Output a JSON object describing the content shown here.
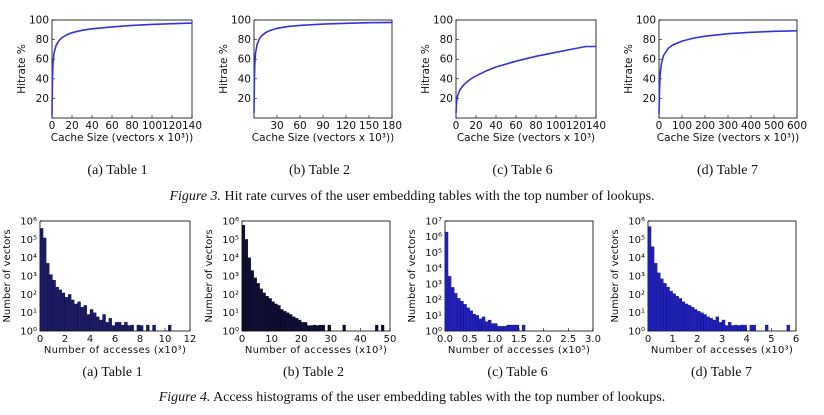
{
  "figure3": {
    "label": "Figure 3.",
    "text": "Hit rate curves of the user embedding tables with the top number of lookups.",
    "panels": [
      {
        "caption": "(a) Table 1"
      },
      {
        "caption": "(b) Table 2"
      },
      {
        "caption": "(c) Table 6"
      },
      {
        "caption": "(d) Table 7"
      }
    ]
  },
  "figure4": {
    "label": "Figure 4.",
    "text": "Access histograms of the user embedding tables with the top number of lookups.",
    "panels": [
      {
        "caption": "(a) Table 1"
      },
      {
        "caption": "(b) Table 2"
      },
      {
        "caption": "(c) Table 6"
      },
      {
        "caption": "(d) Table 7"
      }
    ]
  },
  "chart_data": [
    {
      "type": "line",
      "title": "",
      "xlabel": "Cache Size (vectors x 10³))",
      "ylabel": "Hitrate %",
      "xlim": [
        0,
        140
      ],
      "ylim": [
        0,
        100
      ],
      "xticks": [
        0,
        20,
        40,
        60,
        80,
        100,
        120,
        140
      ],
      "yticks": [
        20,
        40,
        60,
        80,
        100
      ],
      "line_color": "#3333dd",
      "x": [
        0,
        0.5,
        1,
        2,
        4,
        7,
        10,
        15,
        20,
        30,
        40,
        60,
        80,
        100,
        120,
        140
      ],
      "y": [
        3,
        42,
        56,
        66,
        74,
        79,
        82,
        85,
        87,
        89.5,
        91,
        93,
        94.5,
        95.5,
        96.2,
        96.8
      ]
    },
    {
      "type": "line",
      "title": "",
      "xlabel": "Cache Size (vectors x 10³))",
      "ylabel": "Hitrate %",
      "xlim": [
        0,
        180
      ],
      "ylim": [
        0,
        100
      ],
      "xticks": [
        30,
        60,
        90,
        120,
        150,
        180
      ],
      "yticks": [
        20,
        40,
        60,
        80,
        100
      ],
      "line_color": "#3333dd",
      "x": [
        0,
        0.5,
        1,
        2,
        4,
        7,
        10,
        15,
        20,
        30,
        45,
        60,
        90,
        120,
        150,
        180
      ],
      "y": [
        5,
        40,
        55,
        66,
        75,
        81,
        84,
        87,
        89,
        91.5,
        93.5,
        94.5,
        95.8,
        96.6,
        97.2,
        97.6
      ]
    },
    {
      "type": "line",
      "title": "",
      "xlabel": "Cache Size (vectors x 10³)",
      "ylabel": "Hitrate %",
      "xlim": [
        0,
        140
      ],
      "ylim": [
        0,
        100
      ],
      "xticks": [
        0,
        20,
        40,
        60,
        80,
        100,
        120,
        140
      ],
      "yticks": [
        20,
        40,
        60,
        80,
        100
      ],
      "line_color": "#3333dd",
      "x": [
        0,
        0.5,
        1,
        2,
        4,
        7,
        10,
        15,
        20,
        30,
        40,
        60,
        80,
        100,
        120,
        130,
        140
      ],
      "y": [
        5,
        15,
        20,
        24,
        29,
        33,
        36,
        40,
        43,
        48,
        52,
        58,
        63,
        67,
        71,
        73,
        73
      ]
    },
    {
      "type": "line",
      "title": "",
      "xlabel": "Cache Size (vectors x 10³))",
      "ylabel": "Hitrate %",
      "xlim": [
        0,
        600
      ],
      "ylim": [
        0,
        100
      ],
      "xticks": [
        0,
        100,
        200,
        300,
        400,
        500,
        600
      ],
      "yticks": [
        20,
        40,
        60,
        80,
        100
      ],
      "line_color": "#3333dd",
      "x": [
        0,
        2,
        5,
        10,
        20,
        40,
        60,
        100,
        150,
        200,
        300,
        400,
        500,
        600
      ],
      "y": [
        4,
        28,
        44,
        55,
        64,
        71,
        74.5,
        78.5,
        81.5,
        83.5,
        86,
        87.5,
        88.5,
        89
      ]
    },
    {
      "type": "bar",
      "title": "",
      "xlabel": "Number of accesses (x10³)",
      "ylabel": "Number of vectors",
      "yscale": "log",
      "ylim_exp": [
        0,
        6
      ],
      "xlim": [
        0,
        12
      ],
      "xticks": [
        0,
        2,
        4,
        6,
        8,
        10,
        12
      ],
      "ytick_labels": [
        "10⁰",
        "10¹",
        "10²",
        "10³",
        "10⁴",
        "10⁵",
        "10⁶"
      ],
      "bar_color": "#1a1a66",
      "bin_width": 0.25,
      "counts": [
        400000,
        120000,
        5000,
        1200,
        600,
        250,
        180,
        120,
        70,
        100,
        50,
        30,
        40,
        20,
        25,
        8,
        15,
        10,
        6,
        4,
        8,
        3,
        5,
        2,
        3,
        3,
        1,
        3,
        2,
        1,
        0,
        1,
        2,
        0,
        1,
        0,
        1,
        0,
        0,
        0,
        0,
        1,
        0,
        0,
        0,
        0,
        0,
        0
      ]
    },
    {
      "type": "bar",
      "title": "",
      "xlabel": "Number of accesses (x10³)",
      "ylabel": "Number of vectors",
      "yscale": "log",
      "ylim_exp": [
        0,
        6
      ],
      "xlim": [
        0,
        50
      ],
      "xticks": [
        0,
        10,
        20,
        30,
        40,
        50
      ],
      "ytick_labels": [
        "10⁰",
        "10¹",
        "10²",
        "10³",
        "10⁴",
        "10⁵",
        "10⁶"
      ],
      "bar_color": "#0d0d33",
      "bin_width": 1,
      "counts": [
        600000,
        100000,
        10000,
        2000,
        800,
        400,
        200,
        120,
        80,
        60,
        40,
        30,
        25,
        15,
        12,
        10,
        8,
        6,
        5,
        4,
        3,
        3,
        2,
        2,
        1,
        2,
        1,
        1,
        0,
        1,
        0,
        0,
        0,
        0,
        1,
        0,
        0,
        0,
        0,
        0,
        0,
        0,
        0,
        0,
        0,
        1,
        0,
        1,
        0,
        0
      ]
    },
    {
      "type": "bar",
      "title": "",
      "xlabel": "Number of accesses (x10⁵)",
      "ylabel": "Number of vectors",
      "yscale": "log",
      "ylim_exp": [
        0,
        7
      ],
      "xlim": [
        0,
        3
      ],
      "xticks": [
        0.0,
        0.5,
        1.0,
        1.5,
        2.0,
        2.5,
        3.0
      ],
      "ytick_labels": [
        "10⁰",
        "10¹",
        "10²",
        "10³",
        "10⁴",
        "10⁵",
        "10⁶",
        "10⁷"
      ],
      "bar_color": "#1f1fbf",
      "bin_width": 0.0625,
      "counts": [
        2000000,
        3000,
        600,
        250,
        120,
        80,
        50,
        30,
        20,
        12,
        10,
        6,
        8,
        4,
        5,
        3,
        3,
        2,
        2,
        2,
        1,
        1,
        1,
        1,
        0,
        1,
        0,
        0,
        0,
        0,
        0,
        0,
        0,
        0,
        0,
        0,
        0,
        0,
        0,
        0,
        0,
        0,
        0,
        0,
        0,
        0,
        0,
        0
      ]
    },
    {
      "type": "bar",
      "title": "",
      "xlabel": "Number of accesses (x10³)",
      "ylabel": "Number of vectors",
      "yscale": "log",
      "ylim_exp": [
        0,
        6
      ],
      "xlim": [
        0,
        6
      ],
      "xticks": [
        0,
        1,
        2,
        3,
        4,
        5,
        6
      ],
      "ytick_labels": [
        "10⁰",
        "10¹",
        "10²",
        "10³",
        "10⁴",
        "10⁵",
        "10⁶"
      ],
      "bar_color": "#1f1fbf",
      "bin_width": 0.125,
      "counts": [
        500000,
        40000,
        5000,
        1500,
        700,
        400,
        250,
        150,
        110,
        80,
        60,
        40,
        30,
        25,
        20,
        15,
        12,
        10,
        8,
        6,
        5,
        4,
        6,
        3,
        4,
        2,
        3,
        2,
        1,
        2,
        1,
        1,
        0,
        1,
        1,
        0,
        0,
        0,
        1,
        0,
        0,
        0,
        0,
        0,
        0,
        1,
        0,
        0
      ]
    }
  ]
}
